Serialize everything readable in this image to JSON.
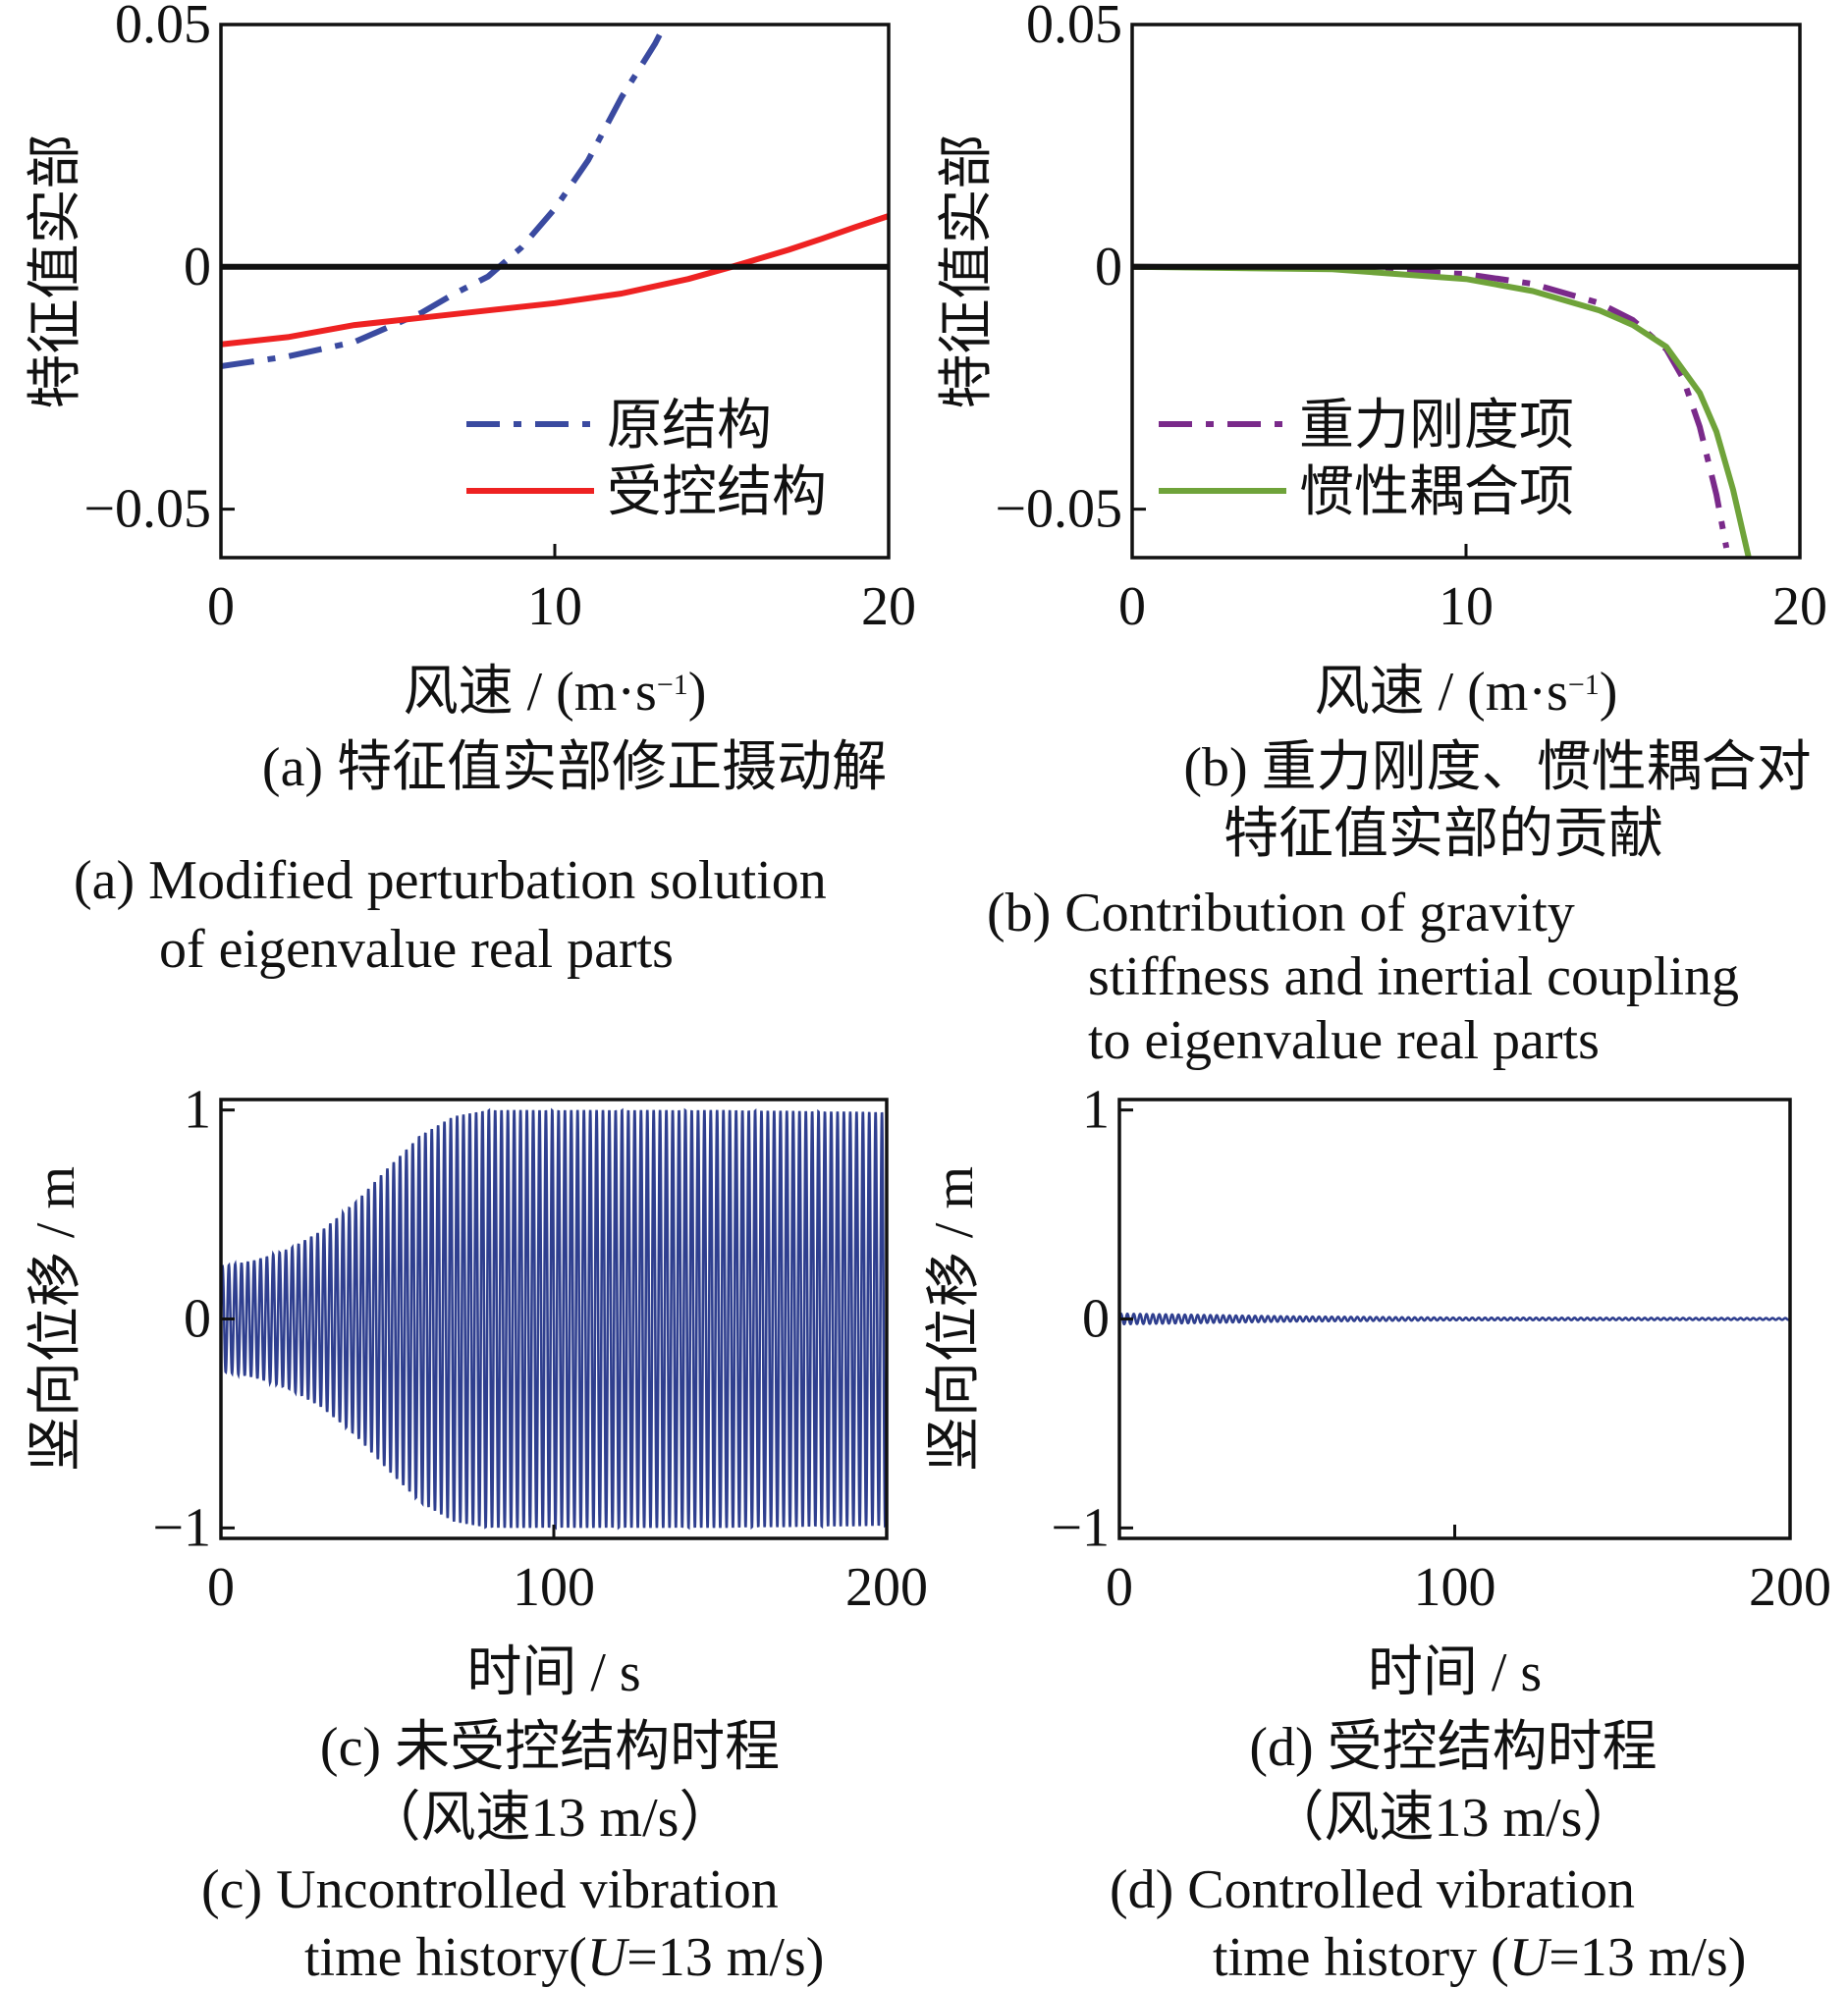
{
  "chart_data": [
    {
      "id": "a",
      "type": "line",
      "xlabel": "风速 / (m·s",
      "xlabel_sup": "−1",
      "xlabel_close": ")",
      "ylabel": "特征值实部",
      "xlim": [
        0,
        20
      ],
      "ylim": [
        -0.06,
        0.05
      ],
      "xticks": [
        0,
        10,
        20
      ],
      "xtick_labels": [
        "0",
        "10",
        "20"
      ],
      "yticks": [
        0.05,
        0,
        -0.05
      ],
      "ytick_labels": [
        "0.05",
        "0",
        "−0.05"
      ],
      "legend_position": "bottom-right",
      "series": [
        {
          "name": "原结构",
          "color": "#3a4aa0",
          "dash": "dashdot",
          "x": [
            0,
            2,
            4,
            6,
            7,
            8,
            9,
            10,
            11,
            12,
            13,
            13.3
          ],
          "y": [
            -0.0205,
            -0.0185,
            -0.0155,
            -0.0095,
            -0.0055,
            -0.002,
            0.004,
            0.012,
            0.022,
            0.035,
            0.046,
            0.05
          ]
        },
        {
          "name": "受控结构",
          "color": "#ee2222",
          "dash": "solid",
          "x": [
            0,
            2,
            4,
            6,
            8,
            10,
            12,
            14,
            15.3,
            17,
            18,
            19,
            20
          ],
          "y": [
            -0.016,
            -0.0145,
            -0.012,
            -0.0105,
            -0.009,
            -0.0075,
            -0.0055,
            -0.0025,
            0.0,
            0.0035,
            0.0058,
            0.0082,
            0.0105
          ]
        },
        {
          "name": "",
          "color": "#111111",
          "dash": "solid",
          "x": [
            0,
            20
          ],
          "y": [
            0,
            0
          ]
        }
      ],
      "caption_lines": [
        "(a)  特征值实部修正摄动解",
        "(a) Modified perturbation solution",
        "of eigenvalue real parts"
      ]
    },
    {
      "id": "b",
      "type": "line",
      "xlabel": "风速 / (m·s",
      "xlabel_sup": "−1",
      "xlabel_close": ")",
      "ylabel": "特征值实部",
      "xlim": [
        0,
        20
      ],
      "ylim": [
        -0.06,
        0.05
      ],
      "xticks": [
        0,
        10,
        20
      ],
      "xtick_labels": [
        "0",
        "10",
        "20"
      ],
      "yticks": [
        0.05,
        0,
        -0.05
      ],
      "ytick_labels": [
        "0.05",
        "0",
        "−0.05"
      ],
      "legend_position": "bottom-left",
      "series": [
        {
          "name": "重力刚度项",
          "color": "#7a2a8a",
          "dash": "dashdot",
          "x": [
            0,
            6,
            10,
            12,
            14,
            15,
            16,
            16.5,
            17,
            17.5,
            17.8
          ],
          "y": [
            0,
            -0.0002,
            -0.0015,
            -0.0035,
            -0.0075,
            -0.011,
            -0.017,
            -0.023,
            -0.033,
            -0.047,
            -0.058
          ]
        },
        {
          "name": "惯性耦合项",
          "color": "#6fa33a",
          "dash": "solid",
          "x": [
            0,
            6,
            10,
            12,
            14,
            15,
            16,
            17,
            17.5,
            18,
            18.5
          ],
          "y": [
            0,
            -0.0005,
            -0.0025,
            -0.005,
            -0.009,
            -0.012,
            -0.0165,
            -0.026,
            -0.034,
            -0.046,
            -0.061
          ]
        },
        {
          "name": "",
          "color": "#111111",
          "dash": "solid",
          "x": [
            0,
            20
          ],
          "y": [
            0,
            0
          ]
        }
      ],
      "caption_lines": [
        "(b)  重力刚度、惯性耦合对",
        "特征值实部的贡献",
        "(b)  Contribution of gravity",
        "stiffness and inertial coupling",
        "to eigenvalue real parts"
      ]
    },
    {
      "id": "c",
      "type": "line",
      "xlabel": "时间 / s",
      "ylabel": "竖向位移 / m",
      "xlim": [
        0,
        200
      ],
      "ylim": [
        -1.05,
        1.05
      ],
      "xticks": [
        0,
        100,
        200
      ],
      "xtick_labels": [
        "0",
        "100",
        "200"
      ],
      "yticks": [
        1,
        0,
        -1
      ],
      "ytick_labels": [
        "1",
        "0",
        "−1"
      ],
      "series": [
        {
          "name": "",
          "color": "#2f3f8f",
          "oscillating": true,
          "cycles": 105,
          "envelope_t": [
            0,
            10,
            20,
            30,
            40,
            50,
            60,
            70,
            80,
            100,
            150,
            200
          ],
          "envelope_amp": [
            0.25,
            0.28,
            0.33,
            0.42,
            0.55,
            0.72,
            0.88,
            0.97,
            1.0,
            1.0,
            1.0,
            0.99
          ]
        }
      ],
      "caption_lines": [
        "(c)  未受控结构时程",
        "（风速13 m/s）",
        "(c)  Uncontrolled vibration",
        "time history(",
        "U",
        "=13 m/s)"
      ]
    },
    {
      "id": "d",
      "type": "line",
      "xlabel": "时间 / s",
      "ylabel": "竖向位移 / m",
      "xlim": [
        0,
        200
      ],
      "ylim": [
        -1.05,
        1.05
      ],
      "xticks": [
        0,
        100,
        200
      ],
      "xtick_labels": [
        "0",
        "100",
        "200"
      ],
      "yticks": [
        1,
        0,
        -1
      ],
      "ytick_labels": [
        "1",
        "0",
        "−1"
      ],
      "series": [
        {
          "name": "",
          "color": "#2f3f8f",
          "oscillating": true,
          "cycles": 105,
          "envelope_t": [
            0,
            20,
            50,
            100,
            200
          ],
          "envelope_amp": [
            0.025,
            0.02,
            0.012,
            0.006,
            0.004
          ]
        }
      ],
      "caption_lines": [
        "(d)  受控结构时程",
        "（风速13 m/s）",
        "(d)  Controlled vibration",
        "time history (",
        "U",
        "=13 m/s)"
      ]
    }
  ]
}
